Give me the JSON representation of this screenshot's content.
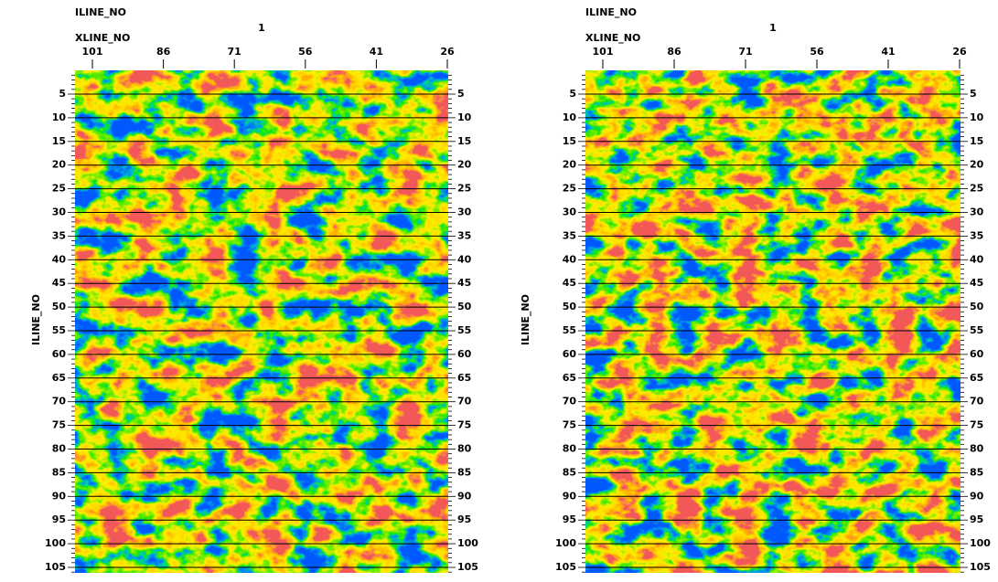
{
  "panels": [
    {
      "iline_label": "ILINE_NO",
      "iline_value": "1",
      "xline_label": "XLINE_NO",
      "xticks": [
        101,
        86,
        71,
        56,
        41,
        26
      ],
      "yticks": [
        5,
        10,
        15,
        20,
        25,
        30,
        35,
        40,
        45,
        50,
        55,
        60,
        65,
        70,
        75,
        80,
        85,
        90,
        95,
        100,
        105
      ],
      "axis_label": "ILINE_NO"
    },
    {
      "iline_label": "ILINE_NO",
      "iline_value": "1",
      "xline_label": "XLINE_NO",
      "xticks": [
        101,
        86,
        71,
        56,
        41,
        26
      ],
      "yticks": [
        5,
        10,
        15,
        20,
        25,
        30,
        35,
        40,
        45,
        50,
        55,
        60,
        65,
        70,
        75,
        80,
        85,
        90,
        95,
        100,
        105
      ],
      "axis_label": "ILINE_NO"
    }
  ]
}
